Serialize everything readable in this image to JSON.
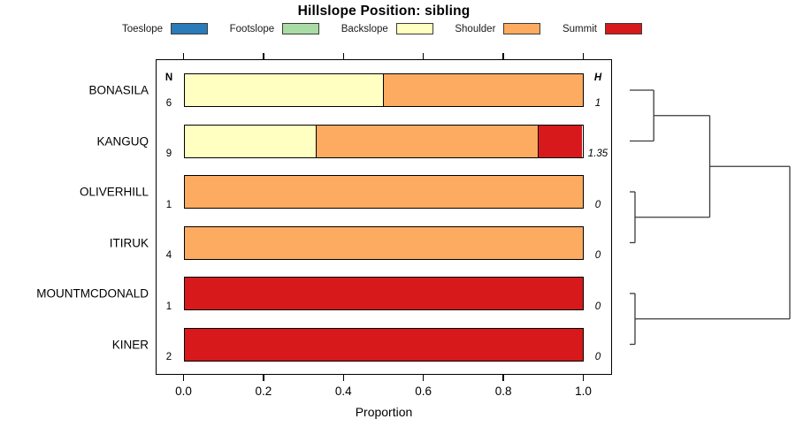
{
  "title": "Hillslope Position: sibling",
  "legend": {
    "items": [
      {
        "label": "Toeslope",
        "color": "#2b7bba"
      },
      {
        "label": "Footslope",
        "color": "#a9dca4"
      },
      {
        "label": "Backslope",
        "color": "#ffffc2"
      },
      {
        "label": "Shoulder",
        "color": "#fcab60"
      },
      {
        "label": "Summit",
        "color": "#d7191c"
      }
    ]
  },
  "chart_data": {
    "type": "bar",
    "orientation": "horizontal",
    "stacked": true,
    "title": "Hillslope Position: sibling",
    "xlabel": "Proportion",
    "xlim": [
      0,
      1
    ],
    "xticks": [
      "0.0",
      "0.2",
      "0.4",
      "0.6",
      "0.8",
      "1.0"
    ],
    "grid": false,
    "legend_position": "top",
    "categories": [
      "BONASILA",
      "KANGUQ",
      "OLIVERHILL",
      "ITIRUK",
      "MOUNTMCDONALD",
      "KINER"
    ],
    "left_annotation": {
      "header": "N",
      "values": [
        "6",
        "9",
        "1",
        "4",
        "1",
        "2"
      ]
    },
    "right_annotation": {
      "header": "H",
      "values": [
        "1",
        "1.35",
        "0",
        "0",
        "0",
        "0"
      ]
    },
    "series": [
      {
        "name": "Toeslope",
        "color": "#2b7bba",
        "values": [
          0,
          0,
          0,
          0,
          0,
          0
        ]
      },
      {
        "name": "Footslope",
        "color": "#a9dca4",
        "values": [
          0,
          0,
          0,
          0,
          0,
          0
        ]
      },
      {
        "name": "Backslope",
        "color": "#ffffc2",
        "values": [
          0.5,
          0.333,
          0,
          0,
          0,
          0
        ]
      },
      {
        "name": "Shoulder",
        "color": "#fcab60",
        "values": [
          0.5,
          0.556,
          1,
          1,
          0,
          0
        ]
      },
      {
        "name": "Summit",
        "color": "#d7191c",
        "values": [
          0,
          0.111,
          0,
          0,
          1,
          1
        ]
      }
    ],
    "dendrogram": {
      "segments": [
        [
          0,
          1,
          0.15,
          1
        ],
        [
          0,
          2,
          0.15,
          2
        ],
        [
          0.15,
          1,
          0.15,
          2
        ],
        [
          0.15,
          1.5,
          0.5,
          1.5
        ],
        [
          0,
          3,
          0.033,
          3
        ],
        [
          0,
          4,
          0.033,
          4
        ],
        [
          0.033,
          3,
          0.033,
          4
        ],
        [
          0.033,
          3.5,
          0.5,
          3.5
        ],
        [
          0.5,
          1.5,
          0.5,
          3.5
        ],
        [
          0.5,
          2.5,
          1,
          2.5
        ],
        [
          0,
          5,
          0.033,
          5
        ],
        [
          0,
          6,
          0.033,
          6
        ],
        [
          0.033,
          5,
          0.033,
          6
        ],
        [
          0.033,
          5.5,
          1,
          5.5
        ],
        [
          1,
          2.5,
          1,
          5.5
        ]
      ]
    }
  },
  "colors": {
    "bar_border": "#000000",
    "axis": "#000000",
    "dendrogram_line": "#3a3a3a"
  }
}
